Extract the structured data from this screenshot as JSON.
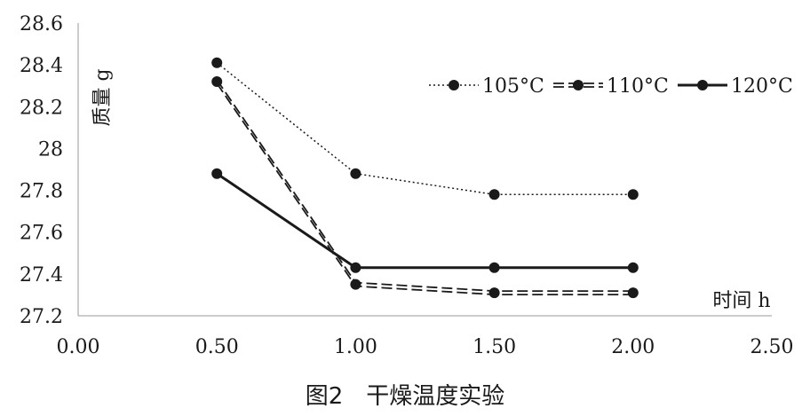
{
  "chart_data": {
    "type": "line",
    "title": "",
    "caption": "图2　干燥温度实验",
    "xlabel": "时间 h",
    "ylabel": "质量 g",
    "xlim": [
      0,
      2.5
    ],
    "ylim": [
      27.2,
      28.6
    ],
    "x_ticks": [
      "0.00",
      "0.50",
      "1.00",
      "1.50",
      "2.00",
      "2.50"
    ],
    "y_ticks": [
      "27.2",
      "27.4",
      "27.6",
      "27.8",
      "28",
      "28.2",
      "28.4",
      "28.6"
    ],
    "grid": false,
    "legend_position": "top-right",
    "series": [
      {
        "name": "105°C",
        "style": "dotted",
        "color": "#1a1a1a",
        "x": [
          0.5,
          1.0,
          1.5,
          2.0
        ],
        "y": [
          28.41,
          27.88,
          27.78,
          27.78
        ]
      },
      {
        "name": "110°C",
        "style": "dashed",
        "color": "#1a1a1a",
        "x": [
          0.5,
          1.0,
          1.5,
          2.0
        ],
        "y": [
          28.32,
          27.35,
          27.31,
          27.31
        ]
      },
      {
        "name": "120°C",
        "style": "solid",
        "color": "#1a1a1a",
        "x": [
          0.5,
          1.0,
          1.5,
          2.0
        ],
        "y": [
          27.88,
          27.43,
          27.43,
          27.43
        ]
      }
    ]
  }
}
